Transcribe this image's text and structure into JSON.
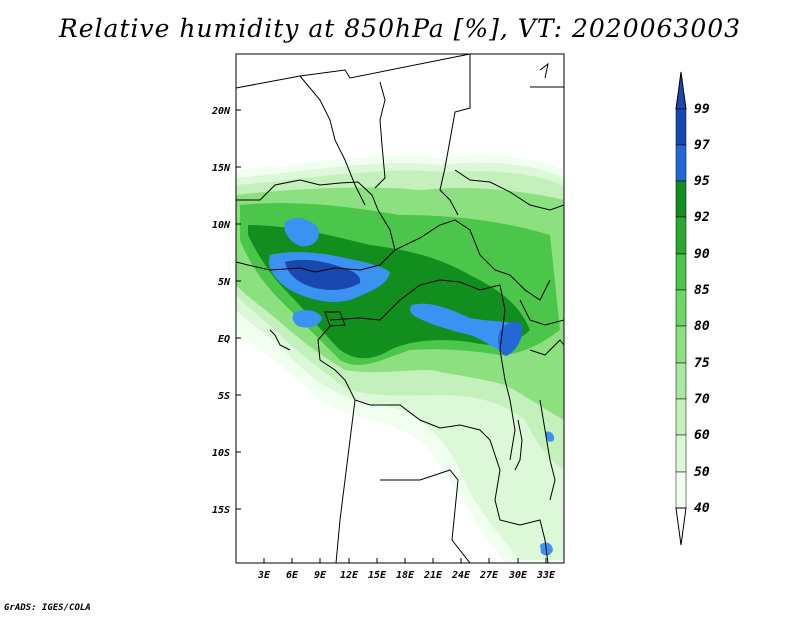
{
  "title": "Relative humidity at 850hPa [%], VT: 2020063003",
  "credit": "GrADS: IGES/COLA",
  "map": {
    "lat_ticks": [
      "20N",
      "15N",
      "10N",
      "5N",
      "EQ",
      "5S",
      "10S",
      "15S"
    ],
    "lon_ticks": [
      "3E",
      "6E",
      "9E",
      "12E",
      "15E",
      "18E",
      "21E",
      "24E",
      "27E",
      "30E",
      "33E"
    ]
  },
  "colorbar": {
    "levels": [
      "99",
      "97",
      "95",
      "92",
      "90",
      "85",
      "80",
      "75",
      "70",
      "60",
      "50",
      "40"
    ],
    "colors": {
      "40": "#f0fff0",
      "50": "#dcf8d8",
      "60": "#c4f0bc",
      "70": "#a8e8a0",
      "75": "#8ce080",
      "80": "#6ed664",
      "85": "#4cc64a",
      "90": "#2ca830",
      "92": "#128e1e",
      "95": "#3c92f0",
      "97": "#2468d8",
      "99": "#1848b0",
      "low": "#ffffff"
    }
  }
}
